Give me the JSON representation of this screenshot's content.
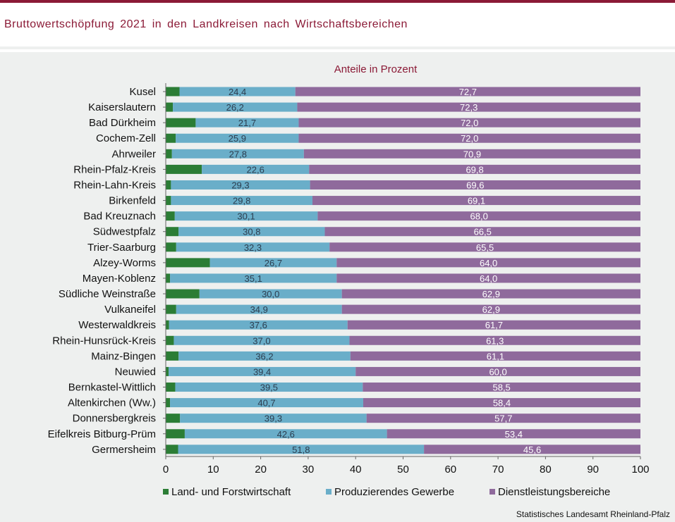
{
  "header": {
    "title": "Bruttowertschöpfung  2021  in den  Landkreisen  nach  Wirtschaftsbereichen"
  },
  "source": "Statistisches Landesamt  Rheinland-Pfalz",
  "colors": {
    "agriculture": "#2b7d35",
    "industry": "#6aaec9",
    "services": "#8f6a9c",
    "accent": "#8b1a36"
  },
  "chart_data": {
    "type": "bar",
    "orientation": "horizontal",
    "stacked": true,
    "subtitle": "Anteile in Prozent",
    "categories": [
      "Kusel",
      "Kaiserslautern",
      "Bad Dürkheim",
      "Cochem-Zell",
      "Ahrweiler",
      "Rhein-Pfalz-Kreis",
      "Rhein-Lahn-Kreis",
      "Birkenfeld",
      "Bad Kreuznach",
      "Südwestpfalz",
      "Trier-Saarburg",
      "Alzey-Worms",
      "Mayen-Koblenz",
      "Südliche Weinstraße",
      "Vulkaneifel",
      "Westerwaldkreis",
      "Rhein-Hunsrück-Kreis",
      "Mainz-Bingen",
      "Neuwied",
      "Bernkastel-Wittlich",
      "Altenkirchen (Ww.)",
      "Donnersbergkreis",
      "Eifelkreis Bitburg-Prüm",
      "Germersheim"
    ],
    "series": [
      {
        "name": "Land- und Forstwirtschaft",
        "labeled": false,
        "values": [
          2.9,
          1.5,
          6.3,
          2.1,
          1.3,
          7.6,
          1.1,
          1.1,
          1.9,
          2.7,
          2.2,
          9.3,
          0.9,
          7.1,
          2.2,
          0.7,
          1.7,
          2.7,
          0.6,
          2.0,
          0.9,
          3.0,
          4.0,
          2.6
        ]
      },
      {
        "name": "Produzierendes Gewerbe",
        "labeled": true,
        "values": [
          24.4,
          26.2,
          21.7,
          25.9,
          27.8,
          22.6,
          29.3,
          29.8,
          30.1,
          30.8,
          32.3,
          26.7,
          35.1,
          30.0,
          34.9,
          37.6,
          37.0,
          36.2,
          39.4,
          39.5,
          40.7,
          39.3,
          42.6,
          51.8
        ]
      },
      {
        "name": "Dienstleistungsbereiche",
        "labeled": true,
        "values": [
          72.7,
          72.3,
          72.0,
          72.0,
          70.9,
          69.8,
          69.6,
          69.1,
          68.0,
          66.5,
          65.5,
          64.0,
          64.0,
          62.9,
          62.9,
          61.7,
          61.3,
          61.1,
          60.0,
          58.5,
          58.4,
          57.7,
          53.4,
          45.6
        ]
      }
    ],
    "value_labels": {
      "Produzierendes Gewerbe": [
        "24,4",
        "26,2",
        "21,7",
        "25,9",
        "27,8",
        "22,6",
        "29,3",
        "29,8",
        "30,1",
        "30,8",
        "32,3",
        "26,7",
        "35,1",
        "30,0",
        "34,9",
        "37,6",
        "37,0",
        "36,2",
        "39,4",
        "39,5",
        "40,7",
        "39,3",
        "42,6",
        "51,8"
      ],
      "Dienstleistungsbereiche": [
        "72,7",
        "72,3",
        "72,0",
        "72,0",
        "70,9",
        "69,8",
        "69,6",
        "69,1",
        "68,0",
        "66,5",
        "65,5",
        "64,0",
        "64,0",
        "62,9",
        "62,9",
        "61,7",
        "61,3",
        "61,1",
        "60,0",
        "58,5",
        "58,4",
        "57,7",
        "53,4",
        "45,6"
      ]
    },
    "xlim": [
      0,
      100
    ],
    "xticks": [
      0,
      10,
      20,
      30,
      40,
      50,
      60,
      70,
      80,
      90,
      100
    ],
    "xlabel": "",
    "ylabel": "",
    "grid": false,
    "legend_position": "bottom"
  }
}
